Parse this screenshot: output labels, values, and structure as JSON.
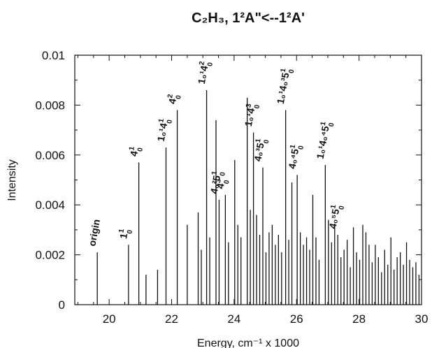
{
  "chart_data": {
    "type": "bar",
    "title": "C₂H₃, 1²A\"<--1²A'",
    "xlabel": "Energy, cm⁻¹ x 1000",
    "ylabel": "Intensity",
    "xlim": [
      18.9,
      30.0
    ],
    "ylim": [
      0,
      0.01
    ],
    "xticks": [
      "20",
      "22",
      "24",
      "26",
      "28",
      "30"
    ],
    "yticks": [
      "0",
      "0.002",
      "0.004",
      "0.006",
      "0.008",
      "0.01"
    ],
    "grid": false,
    "series": [
      {
        "x": [
          19.62,
          20.62,
          20.95,
          21.18,
          21.55,
          21.82,
          22.18,
          22.5,
          22.85,
          22.95,
          23.12,
          23.22,
          23.42,
          23.52,
          23.72,
          23.82,
          24.02,
          24.12,
          24.22,
          24.42,
          24.52,
          24.62,
          24.72,
          24.82,
          24.92,
          25.02,
          25.12,
          25.22,
          25.32,
          25.42,
          25.52,
          25.65,
          25.75,
          25.85,
          26.02,
          26.12,
          26.22,
          26.32,
          26.42,
          26.52,
          26.62,
          26.72,
          26.92,
          27.02,
          27.12,
          27.22,
          27.32,
          27.42,
          27.52,
          27.62,
          27.72,
          27.82,
          27.92,
          28.02,
          28.12,
          28.22,
          28.32,
          28.42,
          28.52,
          28.62,
          28.72,
          28.82,
          28.92,
          29.02,
          29.12,
          29.22,
          29.32,
          29.42,
          29.52,
          29.62,
          29.72,
          29.82,
          29.92
        ],
        "values": [
          0.0021,
          0.0024,
          0.0057,
          0.0012,
          0.0014,
          0.0063,
          0.0078,
          0.0032,
          0.0037,
          0.0022,
          0.0086,
          0.0027,
          0.0074,
          0.0042,
          0.0044,
          0.0025,
          0.0058,
          0.0032,
          0.0027,
          0.0083,
          0.0038,
          0.0069,
          0.0036,
          0.0028,
          0.0055,
          0.0021,
          0.0029,
          0.0032,
          0.0024,
          0.0028,
          0.0021,
          0.0078,
          0.0026,
          0.0049,
          0.0052,
          0.0029,
          0.0024,
          0.0027,
          0.0022,
          0.0044,
          0.0027,
          0.0018,
          0.0056,
          0.0034,
          0.0025,
          0.0032,
          0.0028,
          0.0019,
          0.0022,
          0.0026,
          0.0015,
          0.0031,
          0.0021,
          0.0018,
          0.0032,
          0.0029,
          0.0024,
          0.0017,
          0.0024,
          0.0019,
          0.0013,
          0.0022,
          0.0016,
          0.0027,
          0.0014,
          0.0019,
          0.0021,
          0.0016,
          0.0025,
          0.0018,
          0.0015,
          0.0017,
          0.0012
        ]
      }
    ],
    "annotations": [
      {
        "x": 19.62,
        "label": "origin"
      },
      {
        "x": 20.62,
        "base": "1",
        "sup": "1",
        "sub": "0"
      },
      {
        "x": 20.95,
        "base": "4",
        "sup": "1",
        "sub": "0"
      },
      {
        "x": 21.82,
        "base": "1₀¹4",
        "sup": "1",
        "sub": "0"
      },
      {
        "x": 22.18,
        "base": "4",
        "sup": "2",
        "sub": "0"
      },
      {
        "x": 23.12,
        "base": "1₀¹4",
        "sup": "2",
        "sub": "0"
      },
      {
        "x": 23.52,
        "base": "4₀²5",
        "sup": "1",
        "sub": "0"
      },
      {
        "x": 23.72,
        "base": "4",
        "sup": "3",
        "sub": "0"
      },
      {
        "x": 24.62,
        "base": "1₀¹4",
        "sup": "3",
        "sub": "0"
      },
      {
        "x": 24.92,
        "base": "4₀³5",
        "sup": "1",
        "sub": "0"
      },
      {
        "x": 25.65,
        "base": "1₀¹4₀³5",
        "sup": "1",
        "sub": "0"
      },
      {
        "x": 26.02,
        "base": "4₀⁴5",
        "sup": "1",
        "sub": "0"
      },
      {
        "x": 26.92,
        "base": "1₀¹4₀⁴5",
        "sup": "1",
        "sub": "0"
      },
      {
        "x": 27.32,
        "base": "4₀⁵5",
        "sup": "1",
        "sub": "0"
      }
    ]
  }
}
